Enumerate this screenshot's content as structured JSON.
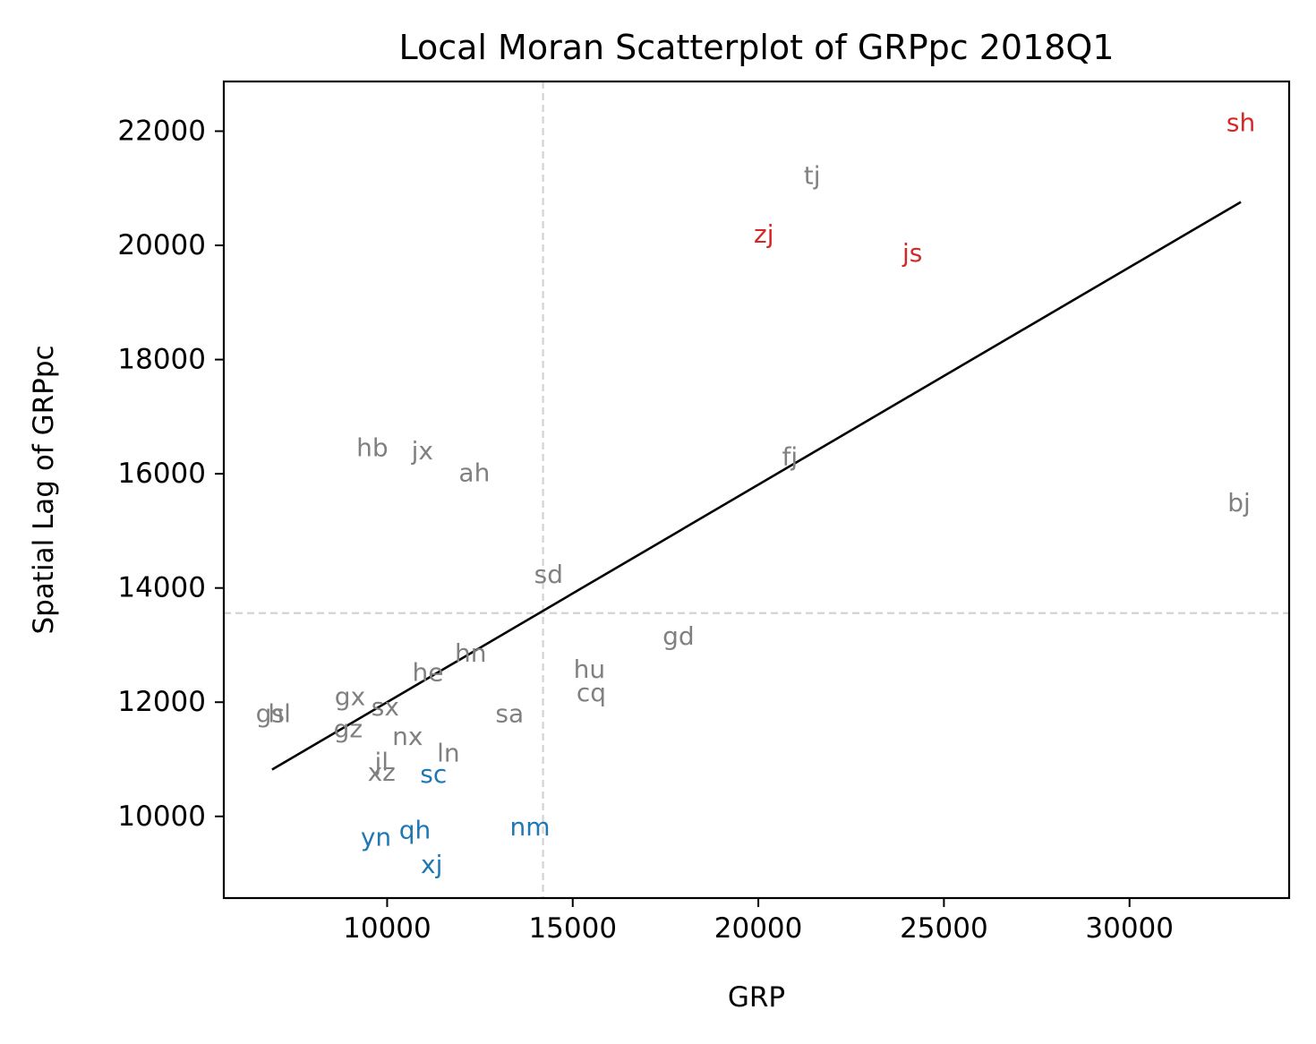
{
  "chart_data": {
    "type": "scatter",
    "title": "Local Moran Scatterplot of GRPpc 2018Q1",
    "xlabel": "GRP",
    "ylabel": "Spatial Lag of GRPpc",
    "xlim": [
      5600,
      34300
    ],
    "ylim": [
      8570,
      22870
    ],
    "xticks": [
      10000,
      15000,
      20000,
      25000,
      30000
    ],
    "yticks": [
      10000,
      12000,
      14000,
      16000,
      18000,
      20000,
      22000
    ],
    "grid": false,
    "reference_lines": {
      "x_mean": 14200,
      "y_mean": 13560
    },
    "fit_line": {
      "x": [
        6900,
        33000
      ],
      "y": [
        10820,
        20760
      ]
    },
    "colors": {
      "hh": "#d62728",
      "ll": "#1f77b4",
      "ns": "#808080",
      "fit": "#000000",
      "ref": "#d3d3d3"
    },
    "points": [
      {
        "label": "sh",
        "x": 33000,
        "y": 22150,
        "cls": "hh"
      },
      {
        "label": "tj",
        "x": 21450,
        "y": 21220,
        "cls": "ns"
      },
      {
        "label": "zj",
        "x": 20150,
        "y": 20200,
        "cls": "hh"
      },
      {
        "label": "js",
        "x": 24150,
        "y": 19870,
        "cls": "hh"
      },
      {
        "label": "bj",
        "x": 32950,
        "y": 15490,
        "cls": "ns"
      },
      {
        "label": "hb",
        "x": 9600,
        "y": 16460,
        "cls": "ns"
      },
      {
        "label": "jx",
        "x": 10950,
        "y": 16400,
        "cls": "ns"
      },
      {
        "label": "ah",
        "x": 12350,
        "y": 16020,
        "cls": "ns"
      },
      {
        "label": "fj",
        "x": 20850,
        "y": 16300,
        "cls": "ns"
      },
      {
        "label": "sd",
        "x": 14350,
        "y": 14240,
        "cls": "ns"
      },
      {
        "label": "gd",
        "x": 17850,
        "y": 13160,
        "cls": "ns"
      },
      {
        "label": "hn",
        "x": 12250,
        "y": 12860,
        "cls": "ns"
      },
      {
        "label": "he",
        "x": 11100,
        "y": 12520,
        "cls": "ns"
      },
      {
        "label": "hu",
        "x": 15450,
        "y": 12580,
        "cls": "ns"
      },
      {
        "label": "cq",
        "x": 15500,
        "y": 12170,
        "cls": "ns"
      },
      {
        "label": "gx",
        "x": 9000,
        "y": 12100,
        "cls": "ns"
      },
      {
        "label": "sx",
        "x": 9950,
        "y": 11920,
        "cls": "ns"
      },
      {
        "label": "gs",
        "x": 6850,
        "y": 11800,
        "cls": "ns"
      },
      {
        "label": "hl",
        "x": 7100,
        "y": 11800,
        "cls": "ns"
      },
      {
        "label": "sa",
        "x": 13300,
        "y": 11800,
        "cls": "ns"
      },
      {
        "label": "gz",
        "x": 8950,
        "y": 11530,
        "cls": "ns"
      },
      {
        "label": "nx",
        "x": 10550,
        "y": 11400,
        "cls": "ns"
      },
      {
        "label": "ln",
        "x": 11650,
        "y": 11110,
        "cls": "ns"
      },
      {
        "label": "jl",
        "x": 9850,
        "y": 10950,
        "cls": "ns"
      },
      {
        "label": "xz",
        "x": 9850,
        "y": 10770,
        "cls": "ns"
      },
      {
        "label": "sc",
        "x": 11250,
        "y": 10740,
        "cls": "ll"
      },
      {
        "label": "nm",
        "x": 13850,
        "y": 9820,
        "cls": "ll"
      },
      {
        "label": "yn",
        "x": 9700,
        "y": 9640,
        "cls": "ll"
      },
      {
        "label": "qh",
        "x": 10750,
        "y": 9760,
        "cls": "ll"
      },
      {
        "label": "xj",
        "x": 11200,
        "y": 9160,
        "cls": "ll"
      }
    ]
  }
}
